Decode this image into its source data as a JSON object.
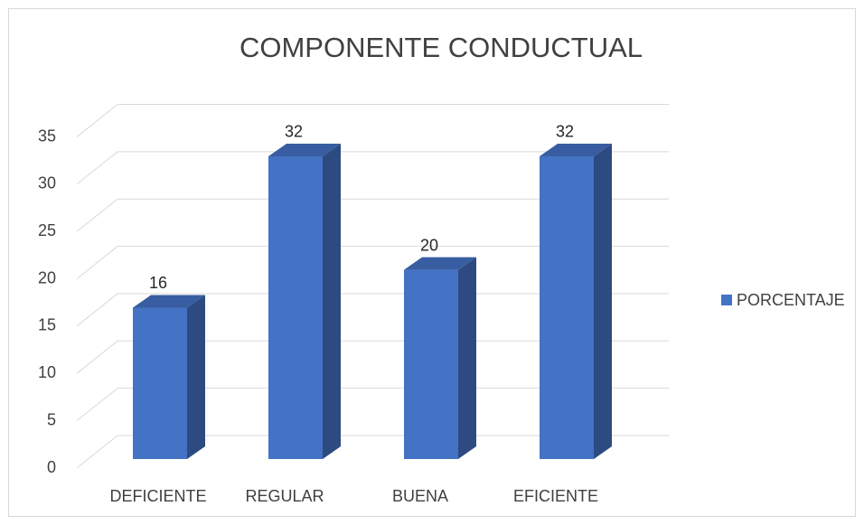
{
  "chart_data": {
    "type": "bar3d",
    "title": "COMPONENTE CONDUCTUAL",
    "categories": [
      "DEFICIENTE",
      "REGULAR",
      "BUENA",
      "EFICIENTE"
    ],
    "series": [
      {
        "name": "PORCENTAJE",
        "color": "#4472c4",
        "values": [
          16,
          32,
          20,
          32
        ]
      }
    ],
    "ylim": [
      0,
      35
    ],
    "yticks": [
      0,
      5,
      10,
      15,
      20,
      25,
      30,
      35
    ],
    "grid": true,
    "legend": "right"
  }
}
